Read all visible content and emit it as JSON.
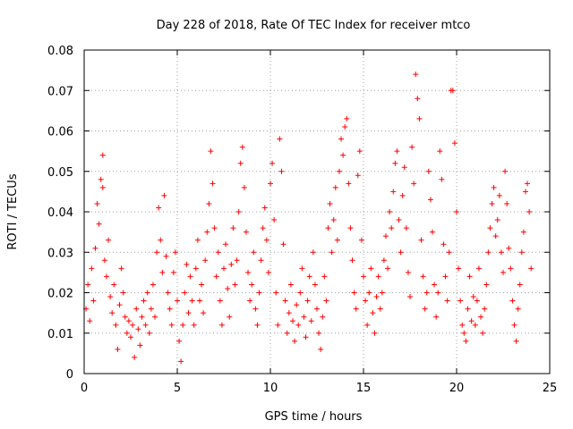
{
  "chart_data": {
    "type": "scatter",
    "title": "Day 228 of 2018, Rate Of TEC Index for receiver mtco",
    "xlabel": "GPS time / hours",
    "ylabel": "ROTI / TECUs",
    "xlim": [
      0,
      25
    ],
    "ylim": [
      0,
      0.08
    ],
    "xticks": [
      0,
      5,
      10,
      15,
      20,
      25
    ],
    "yticks": [
      0,
      0.01,
      0.02,
      0.03,
      0.04,
      0.05,
      0.06,
      0.07,
      0.08
    ],
    "xtick_labels": [
      "0",
      "5",
      "10",
      "15",
      "20",
      "25"
    ],
    "ytick_labels": [
      "0",
      "0.01",
      "0.02",
      "0.03",
      "0.04",
      "0.05",
      "0.06",
      "0.07",
      "0.08"
    ],
    "grid": true,
    "marker": "+",
    "color": "#ff0000",
    "series": [
      {
        "name": "ROTI",
        "points": [
          [
            0.1,
            0.016
          ],
          [
            0.2,
            0.022
          ],
          [
            0.3,
            0.013
          ],
          [
            0.4,
            0.026
          ],
          [
            0.5,
            0.018
          ],
          [
            0.6,
            0.031
          ],
          [
            0.7,
            0.042
          ],
          [
            0.8,
            0.037
          ],
          [
            0.9,
            0.048
          ],
          [
            1.0,
            0.054
          ],
          [
            1.0,
            0.046
          ],
          [
            1.1,
            0.028
          ],
          [
            1.2,
            0.024
          ],
          [
            1.3,
            0.033
          ],
          [
            1.4,
            0.019
          ],
          [
            1.5,
            0.015
          ],
          [
            1.6,
            0.022
          ],
          [
            1.7,
            0.012
          ],
          [
            1.8,
            0.006
          ],
          [
            1.9,
            0.017
          ],
          [
            2.0,
            0.026
          ],
          [
            2.1,
            0.02
          ],
          [
            2.2,
            0.014
          ],
          [
            2.3,
            0.01
          ],
          [
            2.4,
            0.013
          ],
          [
            2.5,
            0.009
          ],
          [
            2.6,
            0.012
          ],
          [
            2.7,
            0.004
          ],
          [
            2.8,
            0.016
          ],
          [
            2.9,
            0.011
          ],
          [
            3.0,
            0.007
          ],
          [
            3.1,
            0.014
          ],
          [
            3.2,
            0.018
          ],
          [
            3.3,
            0.012
          ],
          [
            3.4,
            0.02
          ],
          [
            3.5,
            0.01
          ],
          [
            3.6,
            0.016
          ],
          [
            3.7,
            0.022
          ],
          [
            3.8,
            0.014
          ],
          [
            3.9,
            0.03
          ],
          [
            4.0,
            0.041
          ],
          [
            4.1,
            0.033
          ],
          [
            4.2,
            0.025
          ],
          [
            4.3,
            0.044
          ],
          [
            4.4,
            0.029
          ],
          [
            4.5,
            0.02
          ],
          [
            4.6,
            0.016
          ],
          [
            4.7,
            0.012
          ],
          [
            4.8,
            0.025
          ],
          [
            4.9,
            0.03
          ],
          [
            5.0,
            0.018
          ],
          [
            5.1,
            0.008
          ],
          [
            5.2,
            0.003
          ],
          [
            5.3,
            0.012
          ],
          [
            5.4,
            0.02
          ],
          [
            5.5,
            0.027
          ],
          [
            5.6,
            0.015
          ],
          [
            5.7,
            0.024
          ],
          [
            5.8,
            0.018
          ],
          [
            5.9,
            0.012
          ],
          [
            6.0,
            0.026
          ],
          [
            6.1,
            0.033
          ],
          [
            6.2,
            0.018
          ],
          [
            6.3,
            0.022
          ],
          [
            6.4,
            0.015
          ],
          [
            6.5,
            0.028
          ],
          [
            6.6,
            0.035
          ],
          [
            6.7,
            0.042
          ],
          [
            6.8,
            0.055
          ],
          [
            6.9,
            0.047
          ],
          [
            7.0,
            0.036
          ],
          [
            7.1,
            0.024
          ],
          [
            7.2,
            0.03
          ],
          [
            7.3,
            0.018
          ],
          [
            7.4,
            0.012
          ],
          [
            7.5,
            0.026
          ],
          [
            7.6,
            0.032
          ],
          [
            7.7,
            0.021
          ],
          [
            7.8,
            0.014
          ],
          [
            7.9,
            0.027
          ],
          [
            8.0,
            0.036
          ],
          [
            8.1,
            0.022
          ],
          [
            8.2,
            0.028
          ],
          [
            8.3,
            0.04
          ],
          [
            8.4,
            0.052
          ],
          [
            8.5,
            0.056
          ],
          [
            8.6,
            0.046
          ],
          [
            8.7,
            0.035
          ],
          [
            8.8,
            0.025
          ],
          [
            8.9,
            0.018
          ],
          [
            9.0,
            0.022
          ],
          [
            9.1,
            0.03
          ],
          [
            9.2,
            0.016
          ],
          [
            9.3,
            0.012
          ],
          [
            9.4,
            0.02
          ],
          [
            9.5,
            0.028
          ],
          [
            9.6,
            0.036
          ],
          [
            9.7,
            0.041
          ],
          [
            9.8,
            0.033
          ],
          [
            9.9,
            0.025
          ],
          [
            10.0,
            0.047
          ],
          [
            10.1,
            0.052
          ],
          [
            10.2,
            0.038
          ],
          [
            10.3,
            0.02
          ],
          [
            10.4,
            0.012
          ],
          [
            10.5,
            0.058
          ],
          [
            10.6,
            0.05
          ],
          [
            10.7,
            0.032
          ],
          [
            10.8,
            0.018
          ],
          [
            10.9,
            0.01
          ],
          [
            11.0,
            0.015
          ],
          [
            11.1,
            0.022
          ],
          [
            11.2,
            0.013
          ],
          [
            11.3,
            0.008
          ],
          [
            11.4,
            0.017
          ],
          [
            11.5,
            0.012
          ],
          [
            11.6,
            0.02
          ],
          [
            11.7,
            0.026
          ],
          [
            11.8,
            0.014
          ],
          [
            11.9,
            0.009
          ],
          [
            12.0,
            0.018
          ],
          [
            12.1,
            0.024
          ],
          [
            12.2,
            0.013
          ],
          [
            12.3,
            0.03
          ],
          [
            12.4,
            0.022
          ],
          [
            12.5,
            0.016
          ],
          [
            12.6,
            0.01
          ],
          [
            12.7,
            0.006
          ],
          [
            12.8,
            0.014
          ],
          [
            12.9,
            0.024
          ],
          [
            13.0,
            0.018
          ],
          [
            13.1,
            0.036
          ],
          [
            13.2,
            0.042
          ],
          [
            13.3,
            0.03
          ],
          [
            13.4,
            0.038
          ],
          [
            13.5,
            0.046
          ],
          [
            13.6,
            0.033
          ],
          [
            13.7,
            0.05
          ],
          [
            13.8,
            0.058
          ],
          [
            13.9,
            0.054
          ],
          [
            14.0,
            0.061
          ],
          [
            14.1,
            0.063
          ],
          [
            14.2,
            0.047
          ],
          [
            14.3,
            0.036
          ],
          [
            14.4,
            0.028
          ],
          [
            14.5,
            0.02
          ],
          [
            14.6,
            0.016
          ],
          [
            14.7,
            0.049
          ],
          [
            14.8,
            0.055
          ],
          [
            14.9,
            0.033
          ],
          [
            15.0,
            0.024
          ],
          [
            15.1,
            0.018
          ],
          [
            15.2,
            0.012
          ],
          [
            15.3,
            0.02
          ],
          [
            15.4,
            0.026
          ],
          [
            15.5,
            0.015
          ],
          [
            15.6,
            0.01
          ],
          [
            15.7,
            0.019
          ],
          [
            15.8,
            0.024
          ],
          [
            15.9,
            0.016
          ],
          [
            16.0,
            0.02
          ],
          [
            16.1,
            0.028
          ],
          [
            16.2,
            0.034
          ],
          [
            16.3,
            0.026
          ],
          [
            16.4,
            0.04
          ],
          [
            16.5,
            0.036
          ],
          [
            16.6,
            0.045
          ],
          [
            16.7,
            0.052
          ],
          [
            16.8,
            0.055
          ],
          [
            16.9,
            0.038
          ],
          [
            17.0,
            0.03
          ],
          [
            17.1,
            0.044
          ],
          [
            17.2,
            0.051
          ],
          [
            17.3,
            0.036
          ],
          [
            17.4,
            0.025
          ],
          [
            17.5,
            0.019
          ],
          [
            17.6,
            0.056
          ],
          [
            17.7,
            0.047
          ],
          [
            17.8,
            0.074
          ],
          [
            17.9,
            0.068
          ],
          [
            18.0,
            0.063
          ],
          [
            18.1,
            0.033
          ],
          [
            18.2,
            0.024
          ],
          [
            18.3,
            0.016
          ],
          [
            18.4,
            0.02
          ],
          [
            18.5,
            0.05
          ],
          [
            18.6,
            0.043
          ],
          [
            18.7,
            0.035
          ],
          [
            18.8,
            0.022
          ],
          [
            18.9,
            0.014
          ],
          [
            19.0,
            0.02
          ],
          [
            19.1,
            0.055
          ],
          [
            19.2,
            0.048
          ],
          [
            19.3,
            0.032
          ],
          [
            19.4,
            0.024
          ],
          [
            19.5,
            0.018
          ],
          [
            19.6,
            0.03
          ],
          [
            19.7,
            0.07
          ],
          [
            19.8,
            0.07
          ],
          [
            19.9,
            0.057
          ],
          [
            20.0,
            0.04
          ],
          [
            20.1,
            0.026
          ],
          [
            20.2,
            0.018
          ],
          [
            20.3,
            0.012
          ],
          [
            20.4,
            0.01
          ],
          [
            20.5,
            0.008
          ],
          [
            20.6,
            0.016
          ],
          [
            20.7,
            0.024
          ],
          [
            20.8,
            0.013
          ],
          [
            20.9,
            0.019
          ],
          [
            21.0,
            0.012
          ],
          [
            21.1,
            0.018
          ],
          [
            21.2,
            0.026
          ],
          [
            21.3,
            0.014
          ],
          [
            21.4,
            0.01
          ],
          [
            21.5,
            0.016
          ],
          [
            21.6,
            0.022
          ],
          [
            21.7,
            0.03
          ],
          [
            21.8,
            0.036
          ],
          [
            21.9,
            0.042
          ],
          [
            22.0,
            0.046
          ],
          [
            22.1,
            0.034
          ],
          [
            22.2,
            0.038
          ],
          [
            22.3,
            0.044
          ],
          [
            22.4,
            0.03
          ],
          [
            22.5,
            0.025
          ],
          [
            22.6,
            0.05
          ],
          [
            22.7,
            0.042
          ],
          [
            22.8,
            0.031
          ],
          [
            22.9,
            0.026
          ],
          [
            23.0,
            0.018
          ],
          [
            23.1,
            0.012
          ],
          [
            23.2,
            0.008
          ],
          [
            23.3,
            0.016
          ],
          [
            23.4,
            0.022
          ],
          [
            23.5,
            0.03
          ],
          [
            23.6,
            0.035
          ],
          [
            23.7,
            0.045
          ],
          [
            23.8,
            0.047
          ],
          [
            23.9,
            0.04
          ],
          [
            24.0,
            0.026
          ]
        ]
      }
    ]
  }
}
